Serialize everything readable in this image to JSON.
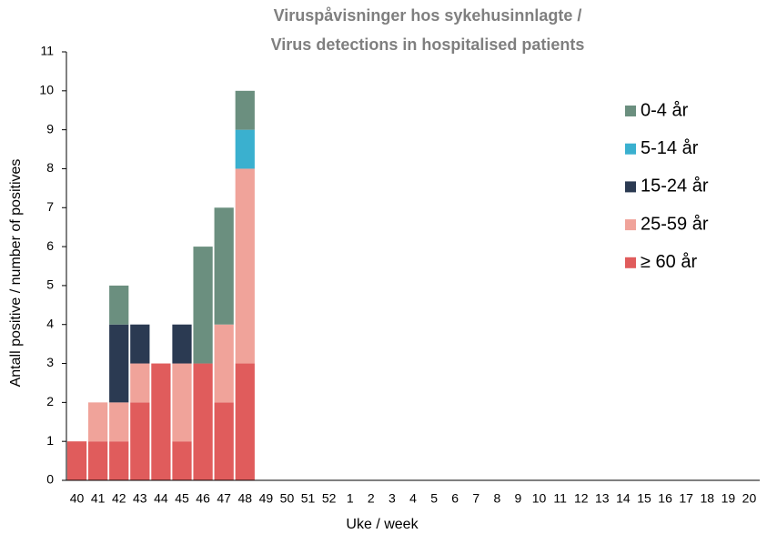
{
  "chart_data": {
    "type": "stacked_bar",
    "title": [
      "Viruspåvisninger hos sykehusinnlagte /",
      "Virus detections in hospitalised patients"
    ],
    "x_label": "Uke / week",
    "y_label": "Antall positive / number of positives",
    "categories": [
      "40",
      "41",
      "42",
      "43",
      "44",
      "45",
      "46",
      "47",
      "48",
      "49",
      "50",
      "51",
      "52",
      "1",
      "2",
      "3",
      "4",
      "5",
      "6",
      "7",
      "8",
      "9",
      "10",
      "11",
      "12",
      "13",
      "14",
      "15",
      "16",
      "17",
      "18",
      "19",
      "20"
    ],
    "series": [
      {
        "name": "≥ 60 år",
        "color": "#e05c5c",
        "values": [
          1,
          1,
          1,
          2,
          3,
          1,
          3,
          2,
          3,
          0,
          0,
          0,
          0,
          0,
          0,
          0,
          0,
          0,
          0,
          0,
          0,
          0,
          0,
          0,
          0,
          0,
          0,
          0,
          0,
          0,
          0,
          0,
          0
        ]
      },
      {
        "name": "25-59 år",
        "color": "#f0a39a",
        "values": [
          0,
          1,
          1,
          1,
          0,
          2,
          0,
          2,
          5,
          0,
          0,
          0,
          0,
          0,
          0,
          0,
          0,
          0,
          0,
          0,
          0,
          0,
          0,
          0,
          0,
          0,
          0,
          0,
          0,
          0,
          0,
          0,
          0
        ]
      },
      {
        "name": "15-24 år",
        "color": "#2b3a52",
        "values": [
          0,
          0,
          2,
          1,
          0,
          1,
          0,
          0,
          0,
          0,
          0,
          0,
          0,
          0,
          0,
          0,
          0,
          0,
          0,
          0,
          0,
          0,
          0,
          0,
          0,
          0,
          0,
          0,
          0,
          0,
          0,
          0,
          0
        ]
      },
      {
        "name": "5-14 år",
        "color": "#3ab0cf",
        "values": [
          0,
          0,
          0,
          0,
          0,
          0,
          0,
          0,
          1,
          0,
          0,
          0,
          0,
          0,
          0,
          0,
          0,
          0,
          0,
          0,
          0,
          0,
          0,
          0,
          0,
          0,
          0,
          0,
          0,
          0,
          0,
          0,
          0
        ]
      },
      {
        "name": "0-4 år",
        "color": "#6b8f7f",
        "values": [
          0,
          0,
          1,
          0,
          0,
          0,
          3,
          3,
          1,
          0,
          0,
          0,
          0,
          0,
          0,
          0,
          0,
          0,
          0,
          0,
          0,
          0,
          0,
          0,
          0,
          0,
          0,
          0,
          0,
          0,
          0,
          0,
          0
        ]
      }
    ],
    "ylim": [
      0,
      11
    ],
    "yticks": [
      0,
      1,
      2,
      3,
      4,
      5,
      6,
      7,
      8,
      9,
      10,
      11
    ],
    "grid": false,
    "legend": "right"
  }
}
